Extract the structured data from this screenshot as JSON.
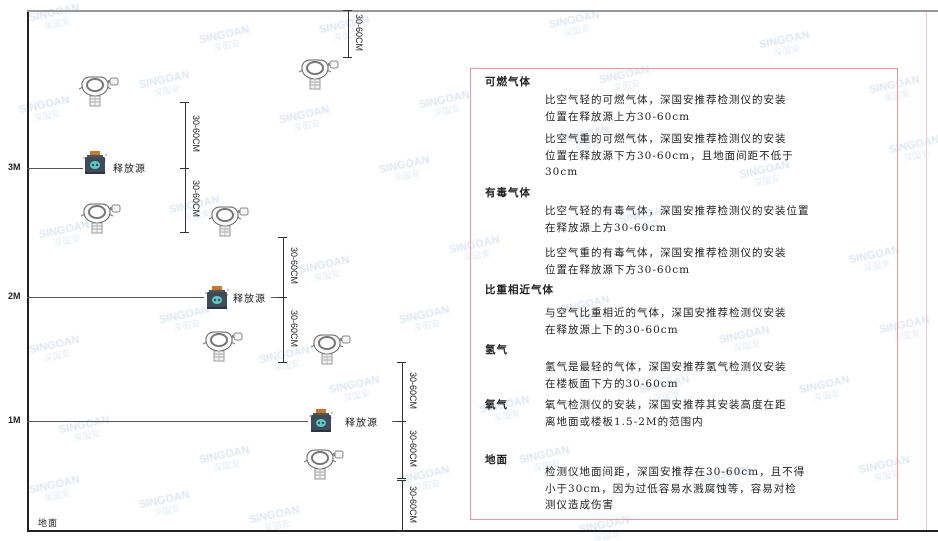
{
  "watermark": {
    "brand": "SINGOAN",
    "cn": "深国安"
  },
  "levels": [
    "3M",
    "2M",
    "1M"
  ],
  "floor_label": "地面",
  "source_label": "释放源",
  "dimension_label": "30-60CM",
  "panel": {
    "sections": [
      {
        "heading": "可燃气体",
        "paragraphs": [
          [
            "比空气轻的可燃气体，深国安推荐检测仪的安装",
            "位置在释放源上方30-60cm"
          ],
          [
            "比空气重的可燃气体，深国安推荐检测仪的安装",
            "位置在释放源下方30-60cm，且地面间距不低于",
            "30cm"
          ]
        ]
      },
      {
        "heading": "有毒气体",
        "paragraphs": [
          [
            "比空气轻的有毒气体，深国安推荐检测仪的安装位置",
            "在释放源上方30-60cm"
          ],
          [
            "比空气重的有毒气体，深国安推荐检测仪的安装",
            "位置在释放源下方30-60cm"
          ]
        ]
      },
      {
        "heading": "比重相近气体",
        "paragraphs": [
          [
            "与空气比重相近的气体，深国安推荐检测仪安装",
            "在释放源上下的30-60cm"
          ]
        ]
      },
      {
        "heading": "氢气",
        "paragraphs": [
          [
            "氢气是最轻的气体，深国安推荐氢气检测仪安装",
            "在楼板面下方的30-60cm"
          ]
        ]
      },
      {
        "heading": "氧气",
        "paragraphs": [
          [
            "氧气检测仪的安装，深国安推荐其安装高度在距",
            "离地面或楼板1.5-2M的范围内"
          ]
        ]
      },
      {
        "heading": "地面",
        "paragraphs": [
          [
            "检测仪地面间距，深国安推荐在30-60cm，且不得",
            "小于30cm，因为过低容易水溅腐蚀等，容易对检",
            "测仪造成伤害"
          ]
        ]
      }
    ]
  },
  "colors": {
    "panel_border": "#e89a9a",
    "source_body": "#3e4b58",
    "source_cap": "#c9782e",
    "skull": "#5fc9c4"
  }
}
